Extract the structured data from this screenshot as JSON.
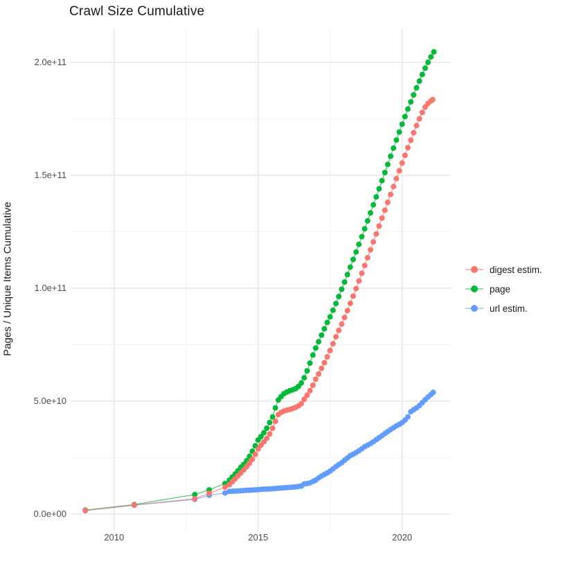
{
  "title": "Crawl Size Cumulative",
  "y_axis": {
    "title": "Pages / Unique Items Cumulative",
    "ticks": [
      {
        "label": "0.0e+00",
        "value": 0
      },
      {
        "label": "5.0e+10",
        "value": 50
      },
      {
        "label": "1.0e+11",
        "value": 100
      },
      {
        "label": "1.5e+11",
        "value": 150
      },
      {
        "label": "2.0e+11",
        "value": 200
      }
    ],
    "minor": [
      25,
      75,
      125,
      175
    ],
    "range_e9": [
      -7.4,
      214.7
    ]
  },
  "x_axis": {
    "ticks": [
      {
        "label": "2010",
        "value": 2010
      },
      {
        "label": "2015",
        "value": 2015
      },
      {
        "label": "2020",
        "value": 2020
      }
    ],
    "minor": [
      2012.5,
      2017.5
    ],
    "range": [
      2008.49,
      2021.69
    ]
  },
  "legend": {
    "items": [
      {
        "label": "digest estim.",
        "color": "#F8766D"
      },
      {
        "label": "page",
        "color": "#00BA38"
      },
      {
        "label": "url estim.",
        "color": "#619CFF"
      }
    ]
  },
  "colors": {
    "grid_major": "#E8E8E8",
    "grid_minor": "#F0F0F0",
    "digest": "#F8766D",
    "page": "#00BA38",
    "url": "#619CFF"
  },
  "chart_data": {
    "type": "scatter",
    "title": "Crawl Size Cumulative",
    "xlabel": "",
    "ylabel": "Pages / Unique Items Cumulative",
    "units": "point values are [year, cumulative items in billions (1e9)]",
    "xlim": [
      2008.49,
      2021.69
    ],
    "ylim_e9": [
      -7.4,
      214.7
    ],
    "grid": "on",
    "legend_position": "right",
    "series": [
      {
        "name": "digest estim.",
        "color": "#F8766D",
        "points": [
          [
            2009.0,
            1.6
          ],
          [
            2010.7,
            4.0
          ],
          [
            2012.8,
            6.8
          ],
          [
            2013.3,
            9.2
          ],
          [
            2013.85,
            11.9
          ],
          [
            2014.0,
            13
          ],
          [
            2014.1,
            14.3
          ],
          [
            2014.2,
            15.6
          ],
          [
            2014.3,
            16.9
          ],
          [
            2014.4,
            18.2
          ],
          [
            2014.5,
            19.6
          ],
          [
            2014.6,
            21
          ],
          [
            2014.7,
            22.5
          ],
          [
            2014.8,
            24.2
          ],
          [
            2014.9,
            26.4
          ],
          [
            2015.0,
            28.8
          ],
          [
            2015.1,
            30.5
          ],
          [
            2015.2,
            32
          ],
          [
            2015.3,
            33.5
          ],
          [
            2015.4,
            35.5
          ],
          [
            2015.5,
            38
          ],
          [
            2015.6,
            41
          ],
          [
            2015.7,
            44
          ],
          [
            2015.8,
            45
          ],
          [
            2015.9,
            45.6
          ],
          [
            2016.0,
            46
          ],
          [
            2016.1,
            46.3
          ],
          [
            2016.2,
            46.7
          ],
          [
            2016.3,
            47.2
          ],
          [
            2016.4,
            47.9
          ],
          [
            2016.5,
            48.9
          ],
          [
            2016.6,
            50.8
          ],
          [
            2016.7,
            52.6
          ],
          [
            2016.8,
            54.6
          ],
          [
            2016.9,
            57
          ],
          [
            2017.0,
            59.7
          ],
          [
            2017.1,
            62
          ],
          [
            2017.2,
            64.5
          ],
          [
            2017.3,
            67
          ],
          [
            2017.4,
            69.6
          ],
          [
            2017.5,
            72.4
          ],
          [
            2017.6,
            75.4
          ],
          [
            2017.7,
            78.5
          ],
          [
            2017.8,
            81.3
          ],
          [
            2017.9,
            84.1
          ],
          [
            2018.0,
            87
          ],
          [
            2018.1,
            90.1
          ],
          [
            2018.2,
            93.3
          ],
          [
            2018.3,
            96.5
          ],
          [
            2018.4,
            99.8
          ],
          [
            2018.5,
            103.2
          ],
          [
            2018.6,
            106.6
          ],
          [
            2018.7,
            110
          ],
          [
            2018.8,
            113.5
          ],
          [
            2018.9,
            117
          ],
          [
            2019.0,
            120.5
          ],
          [
            2019.1,
            124
          ],
          [
            2019.2,
            127.5
          ],
          [
            2019.3,
            131
          ],
          [
            2019.4,
            134.5
          ],
          [
            2019.5,
            138
          ],
          [
            2019.6,
            141.5
          ],
          [
            2019.7,
            145
          ],
          [
            2019.8,
            148.5
          ],
          [
            2019.9,
            152
          ],
          [
            2020.0,
            155.4
          ],
          [
            2020.1,
            158.8
          ],
          [
            2020.2,
            162.2
          ],
          [
            2020.3,
            165.5
          ],
          [
            2020.4,
            168.8
          ],
          [
            2020.5,
            172
          ],
          [
            2020.6,
            175
          ],
          [
            2020.7,
            177.8
          ],
          [
            2020.8,
            180.2
          ],
          [
            2020.9,
            181.8
          ],
          [
            2021.0,
            182.9
          ],
          [
            2021.06,
            183.5
          ]
        ]
      },
      {
        "name": "page",
        "color": "#00BA38",
        "points": [
          [
            2009.0,
            1.7
          ],
          [
            2010.7,
            4.2
          ],
          [
            2012.8,
            8.6
          ],
          [
            2013.3,
            10.7
          ],
          [
            2013.85,
            13.5
          ],
          [
            2014.0,
            15
          ],
          [
            2014.1,
            16.3
          ],
          [
            2014.2,
            17.7
          ],
          [
            2014.3,
            19.2
          ],
          [
            2014.4,
            20.7
          ],
          [
            2014.5,
            22
          ],
          [
            2014.6,
            23.6
          ],
          [
            2014.7,
            25.5
          ],
          [
            2014.8,
            27.8
          ],
          [
            2014.9,
            30.2
          ],
          [
            2015.0,
            32.8
          ],
          [
            2015.1,
            34.3
          ],
          [
            2015.2,
            36
          ],
          [
            2015.3,
            38
          ],
          [
            2015.4,
            40.5
          ],
          [
            2015.5,
            43
          ],
          [
            2015.6,
            47
          ],
          [
            2015.7,
            50.5
          ],
          [
            2015.8,
            52
          ],
          [
            2015.9,
            53.3
          ],
          [
            2016.0,
            54
          ],
          [
            2016.1,
            54.6
          ],
          [
            2016.2,
            55
          ],
          [
            2016.3,
            55.5
          ],
          [
            2016.4,
            56.5
          ],
          [
            2016.5,
            58
          ],
          [
            2016.6,
            60.3
          ],
          [
            2016.7,
            63.4
          ],
          [
            2016.8,
            66.8
          ],
          [
            2016.9,
            70.4
          ],
          [
            2017.0,
            73.5
          ],
          [
            2017.1,
            76.3
          ],
          [
            2017.2,
            79.2
          ],
          [
            2017.3,
            82
          ],
          [
            2017.4,
            84.8
          ],
          [
            2017.5,
            87.3
          ],
          [
            2017.6,
            90.2
          ],
          [
            2017.7,
            93.2
          ],
          [
            2017.8,
            96.3
          ],
          [
            2017.9,
            99.5
          ],
          [
            2018.0,
            102.7
          ],
          [
            2018.1,
            106
          ],
          [
            2018.2,
            109.3
          ],
          [
            2018.3,
            112.7
          ],
          [
            2018.4,
            116
          ],
          [
            2018.5,
            119.4
          ],
          [
            2018.6,
            122.8
          ],
          [
            2018.7,
            126.3
          ],
          [
            2018.8,
            129.8
          ],
          [
            2018.9,
            133.3
          ],
          [
            2019.0,
            136.9
          ],
          [
            2019.1,
            140.4
          ],
          [
            2019.2,
            144
          ],
          [
            2019.3,
            147.6
          ],
          [
            2019.4,
            151.2
          ],
          [
            2019.5,
            154.8
          ],
          [
            2019.6,
            158.4
          ],
          [
            2019.7,
            162
          ],
          [
            2019.8,
            165.6
          ],
          [
            2019.9,
            169.1
          ],
          [
            2020.0,
            172.6
          ],
          [
            2020.1,
            176
          ],
          [
            2020.2,
            179.3
          ],
          [
            2020.3,
            182.5
          ],
          [
            2020.4,
            185.6
          ],
          [
            2020.5,
            188.7
          ],
          [
            2020.6,
            191.7
          ],
          [
            2020.7,
            194.6
          ],
          [
            2020.8,
            197.4
          ],
          [
            2020.9,
            200
          ],
          [
            2021.0,
            202.4
          ],
          [
            2021.1,
            204.6
          ]
        ]
      },
      {
        "name": "url estim.",
        "color": "#619CFF",
        "points": [
          [
            2009.0,
            1.5
          ],
          [
            2010.7,
            3.9
          ],
          [
            2012.8,
            6.5
          ],
          [
            2013.3,
            8.3
          ],
          [
            2013.85,
            9.3
          ],
          [
            2014.0,
            10
          ],
          [
            2014.1,
            10.1
          ],
          [
            2014.2,
            10.15
          ],
          [
            2014.3,
            10.2
          ],
          [
            2014.4,
            10.3
          ],
          [
            2014.5,
            10.4
          ],
          [
            2014.6,
            10.5
          ],
          [
            2014.7,
            10.55
          ],
          [
            2014.8,
            10.6
          ],
          [
            2014.9,
            10.7
          ],
          [
            2015.0,
            10.8
          ],
          [
            2015.1,
            10.9
          ],
          [
            2015.2,
            11
          ],
          [
            2015.3,
            11.05
          ],
          [
            2015.4,
            11.1
          ],
          [
            2015.5,
            11.2
          ],
          [
            2015.6,
            11.3
          ],
          [
            2015.7,
            11.4
          ],
          [
            2015.8,
            11.5
          ],
          [
            2015.9,
            11.6
          ],
          [
            2016.0,
            11.7
          ],
          [
            2016.1,
            11.8
          ],
          [
            2016.2,
            11.9
          ],
          [
            2016.3,
            12
          ],
          [
            2016.4,
            12.2
          ],
          [
            2016.5,
            12.4
          ],
          [
            2016.6,
            13.3
          ],
          [
            2016.7,
            13.5
          ],
          [
            2016.8,
            13.8
          ],
          [
            2016.9,
            14.4
          ],
          [
            2017.0,
            15
          ],
          [
            2017.1,
            16
          ],
          [
            2017.2,
            16.8
          ],
          [
            2017.3,
            17.5
          ],
          [
            2017.4,
            18.2
          ],
          [
            2017.5,
            19
          ],
          [
            2017.6,
            20
          ],
          [
            2017.7,
            21
          ],
          [
            2017.8,
            21.9
          ],
          [
            2017.9,
            22.7
          ],
          [
            2018.0,
            23.8
          ],
          [
            2018.1,
            24.8
          ],
          [
            2018.2,
            25.8
          ],
          [
            2018.3,
            26.5
          ],
          [
            2018.4,
            27.2
          ],
          [
            2018.5,
            28
          ],
          [
            2018.6,
            28.9
          ],
          [
            2018.7,
            29.8
          ],
          [
            2018.8,
            30.5
          ],
          [
            2018.9,
            31.2
          ],
          [
            2019.0,
            32
          ],
          [
            2019.1,
            32.9
          ],
          [
            2019.2,
            33.8
          ],
          [
            2019.3,
            34.7
          ],
          [
            2019.4,
            35.6
          ],
          [
            2019.5,
            36.5
          ],
          [
            2019.6,
            37.4
          ],
          [
            2019.7,
            38.2
          ],
          [
            2019.8,
            39
          ],
          [
            2019.9,
            39.7
          ],
          [
            2020.0,
            40.5
          ],
          [
            2020.1,
            41.6
          ],
          [
            2020.2,
            43
          ],
          [
            2020.3,
            45.3
          ],
          [
            2020.4,
            46.2
          ],
          [
            2020.5,
            47
          ],
          [
            2020.6,
            48
          ],
          [
            2020.7,
            49.3
          ],
          [
            2020.8,
            50.6
          ],
          [
            2020.9,
            51.8
          ],
          [
            2021.0,
            52.9
          ],
          [
            2021.08,
            53.9
          ]
        ]
      }
    ]
  }
}
